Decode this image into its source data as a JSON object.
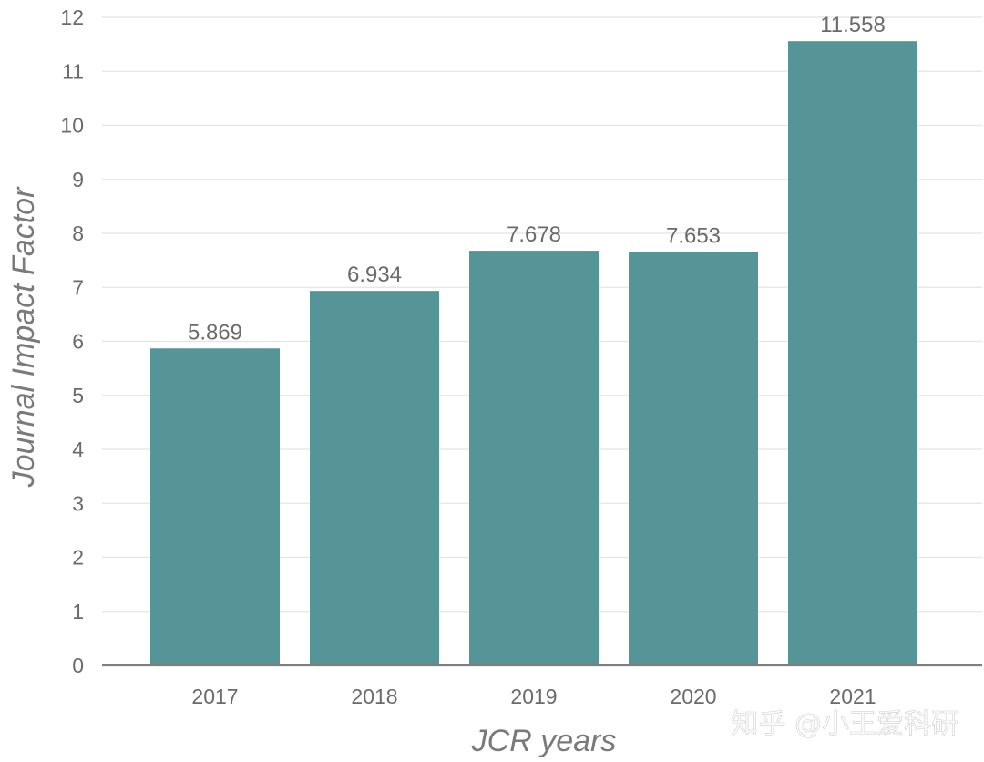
{
  "chart_data": {
    "type": "bar",
    "categories": [
      "2017",
      "2018",
      "2019",
      "2020",
      "2021"
    ],
    "values": [
      5.869,
      6.934,
      7.678,
      7.653,
      11.558
    ],
    "data_labels": [
      "5.869",
      "6.934",
      "7.678",
      "7.653",
      "11.558"
    ],
    "title": "",
    "xlabel": "JCR years",
    "ylabel": "Journal Impact Factor",
    "ylim": [
      0,
      12
    ],
    "yticks": [
      "0",
      "1",
      "2",
      "3",
      "4",
      "5",
      "6",
      "7",
      "8",
      "9",
      "10",
      "11",
      "12"
    ],
    "grid": "horizontal",
    "bar_color": "#559497",
    "gridline_color": "#e4e4e4",
    "axis_color": "#7f7f7f"
  },
  "watermark": "知乎 @小王爱科研"
}
